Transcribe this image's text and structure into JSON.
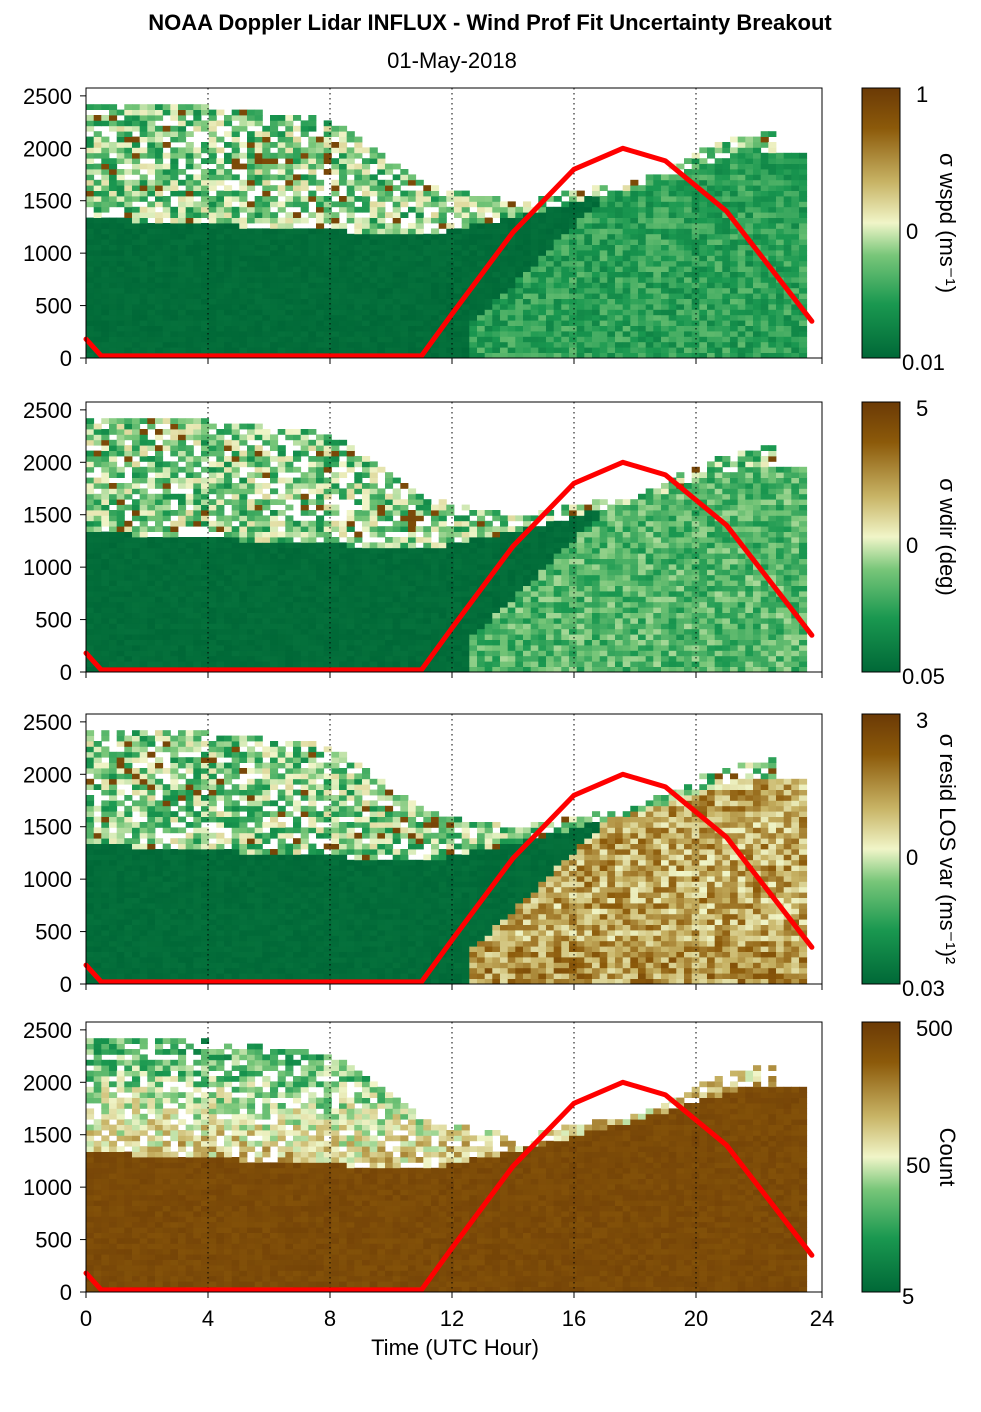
{
  "figure": {
    "title": "NOAA Doppler Lidar INFLUX - Wind Prof Fit Uncertainty Breakout",
    "date": "01-May-2018"
  },
  "colors": {
    "dark_green": "#006837",
    "mid_green": "#1a9850",
    "light_green": "#78c679",
    "pale": "#f0f5c8",
    "tan": "#c8b466",
    "brown": "#8c5a0a",
    "dark_brown": "#6b3a06",
    "sun_curve": "#ff0000"
  },
  "chart_data": [
    {
      "type": "heatmap",
      "xlabel": "",
      "ylabel": "",
      "xlim": [
        0,
        24
      ],
      "ylim": [
        0,
        2500
      ],
      "xticks": [
        0,
        4,
        8,
        12,
        16,
        20,
        24
      ],
      "yticks": [
        0,
        500,
        1000,
        1500,
        2000,
        2500
      ],
      "colorbar": {
        "label": "σ wspd (ms⁻¹)",
        "ticks": [
          "1",
          "0",
          "0.01"
        ],
        "scale": "log"
      },
      "sun_elevation_curve": {
        "x": [
          0,
          0.5,
          11,
          12,
          14,
          16,
          17.6,
          19,
          21,
          23,
          23.8
        ],
        "y": [
          180,
          20,
          20,
          420,
          1200,
          1800,
          2000,
          1880,
          1400,
          650,
          350
        ]
      }
    },
    {
      "type": "heatmap",
      "xlabel": "",
      "ylabel": "",
      "xlim": [
        0,
        24
      ],
      "ylim": [
        0,
        2500
      ],
      "xticks": [
        0,
        4,
        8,
        12,
        16,
        20,
        24
      ],
      "yticks": [
        0,
        500,
        1000,
        1500,
        2000,
        2500
      ],
      "colorbar": {
        "label": "σ wdir (deg)",
        "ticks": [
          "5",
          "0",
          "0.05"
        ],
        "scale": "log"
      },
      "sun_elevation_curve": {
        "x": [
          0,
          0.5,
          11,
          12,
          14,
          16,
          17.6,
          19,
          21,
          23,
          23.8
        ],
        "y": [
          180,
          20,
          20,
          420,
          1200,
          1800,
          2000,
          1880,
          1400,
          650,
          350
        ]
      }
    },
    {
      "type": "heatmap",
      "xlabel": "",
      "ylabel": "",
      "xlim": [
        0,
        24
      ],
      "ylim": [
        0,
        2500
      ],
      "xticks": [
        0,
        4,
        8,
        12,
        16,
        20,
        24
      ],
      "yticks": [
        0,
        500,
        1000,
        1500,
        2000,
        2500
      ],
      "colorbar": {
        "label": "σ resid LOS var (ms⁻¹)²",
        "ticks": [
          "3",
          "0",
          "0.03"
        ],
        "scale": "log"
      },
      "sun_elevation_curve": {
        "x": [
          0,
          0.5,
          11,
          12,
          14,
          16,
          17.6,
          19,
          21,
          23,
          23.8
        ],
        "y": [
          180,
          20,
          20,
          420,
          1200,
          1800,
          2000,
          1880,
          1400,
          650,
          350
        ]
      }
    },
    {
      "type": "heatmap",
      "xlabel": "Time (UTC Hour)",
      "ylabel": "",
      "xlim": [
        0,
        24
      ],
      "ylim": [
        0,
        2500
      ],
      "xticks": [
        0,
        4,
        8,
        12,
        16,
        20,
        24
      ],
      "yticks": [
        0,
        500,
        1000,
        1500,
        2000,
        2500
      ],
      "colorbar": {
        "label": "Count",
        "ticks": [
          "500",
          "50",
          "5"
        ],
        "scale": "log"
      },
      "sun_elevation_curve": {
        "x": [
          0,
          0.5,
          11,
          12,
          14,
          16,
          17.6,
          19,
          21,
          23,
          23.8
        ],
        "y": [
          180,
          20,
          20,
          420,
          1200,
          1800,
          2000,
          1880,
          1400,
          650,
          350
        ]
      }
    }
  ]
}
